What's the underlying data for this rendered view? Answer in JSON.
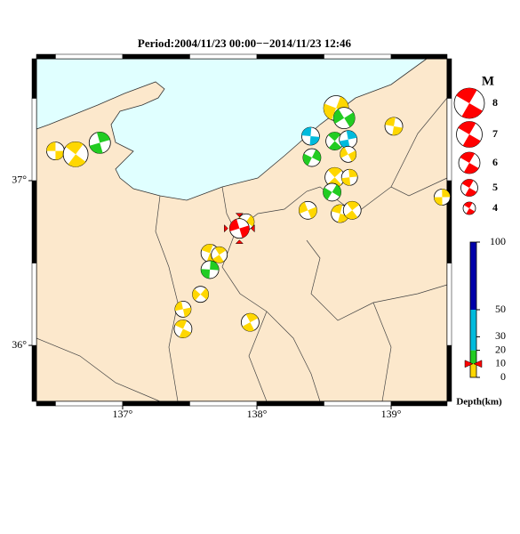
{
  "map": {
    "title": "Period:2004/11/23 00:00−−2014/11/23 12:46",
    "xlim": [
      136.358,
      139.417
    ],
    "ylim": [
      35.66,
      37.74
    ],
    "xticks": [
      {
        "value": 137,
        "label": "137°"
      },
      {
        "value": 138,
        "label": "138°"
      },
      {
        "value": 139,
        "label": "139°"
      }
    ],
    "yticks": [
      {
        "value": 37,
        "label": "37°"
      },
      {
        "value": 36,
        "label": "36°"
      }
    ],
    "sea_color": "#e0ffff",
    "land_color": "#fce8cc",
    "highlight_color": "#ff0000",
    "events": [
      {
        "lon": 136.5,
        "lat": 37.18,
        "mag": 5.2,
        "depth": 5
      },
      {
        "lon": 136.65,
        "lat": 37.16,
        "mag": 6.8,
        "depth": 5
      },
      {
        "lon": 136.83,
        "lat": 37.23,
        "mag": 6.0,
        "depth": 15
      },
      {
        "lon": 138.59,
        "lat": 37.44,
        "mag": 6.8,
        "depth": 5
      },
      {
        "lon": 138.65,
        "lat": 37.38,
        "mag": 6.0,
        "depth": 15
      },
      {
        "lon": 138.4,
        "lat": 37.27,
        "mag": 5.2,
        "depth": 35
      },
      {
        "lon": 138.58,
        "lat": 37.24,
        "mag": 5.2,
        "depth": 15
      },
      {
        "lon": 138.68,
        "lat": 37.25,
        "mag": 5.2,
        "depth": 35
      },
      {
        "lon": 138.41,
        "lat": 37.14,
        "mag": 5.2,
        "depth": 15
      },
      {
        "lon": 138.68,
        "lat": 37.16,
        "mag": 4.8,
        "depth": 5
      },
      {
        "lon": 139.02,
        "lat": 37.33,
        "mag": 5.2,
        "depth": 5
      },
      {
        "lon": 138.58,
        "lat": 37.02,
        "mag": 5.6,
        "depth": 5
      },
      {
        "lon": 138.69,
        "lat": 37.02,
        "mag": 4.8,
        "depth": 5
      },
      {
        "lon": 138.56,
        "lat": 36.93,
        "mag": 5.2,
        "depth": 15
      },
      {
        "lon": 138.38,
        "lat": 36.82,
        "mag": 5.2,
        "depth": 5
      },
      {
        "lon": 138.62,
        "lat": 36.8,
        "mag": 5.2,
        "depth": 5
      },
      {
        "lon": 138.71,
        "lat": 36.82,
        "mag": 5.2,
        "depth": 5
      },
      {
        "lon": 139.38,
        "lat": 36.9,
        "mag": 4.8,
        "depth": 5
      },
      {
        "lon": 137.92,
        "lat": 36.75,
        "mag": 4.8,
        "depth": 5
      },
      {
        "lon": 137.87,
        "lat": 36.71,
        "mag": 5.6,
        "depth": 10,
        "highlight": true
      },
      {
        "lon": 137.65,
        "lat": 36.56,
        "mag": 5.2,
        "depth": 5
      },
      {
        "lon": 137.72,
        "lat": 36.55,
        "mag": 4.8,
        "depth": 5
      },
      {
        "lon": 137.65,
        "lat": 36.46,
        "mag": 5.2,
        "depth": 15
      },
      {
        "lon": 137.58,
        "lat": 36.31,
        "mag": 4.8,
        "depth": 5
      },
      {
        "lon": 137.45,
        "lat": 36.22,
        "mag": 4.8,
        "depth": 5
      },
      {
        "lon": 137.45,
        "lat": 36.1,
        "mag": 5.2,
        "depth": 5
      },
      {
        "lon": 137.95,
        "lat": 36.14,
        "mag": 5.2,
        "depth": 5
      }
    ],
    "magnitude_legend": {
      "title": "M",
      "values": [
        8,
        7,
        6,
        5,
        4
      ],
      "color": "#ff0000"
    },
    "depth_scale": {
      "label": "Depth(km)",
      "lim": [
        0,
        100
      ],
      "ticks": [
        100,
        50,
        30,
        20,
        10,
        0
      ],
      "segments": [
        {
          "from": 0,
          "to": 10,
          "color": "#ffd700"
        },
        {
          "from": 10,
          "to": 20,
          "color": "#22cc22"
        },
        {
          "from": 20,
          "to": 50,
          "color": "#00bbdd"
        },
        {
          "from": 50,
          "to": 100,
          "color": "#0000aa"
        }
      ]
    }
  }
}
